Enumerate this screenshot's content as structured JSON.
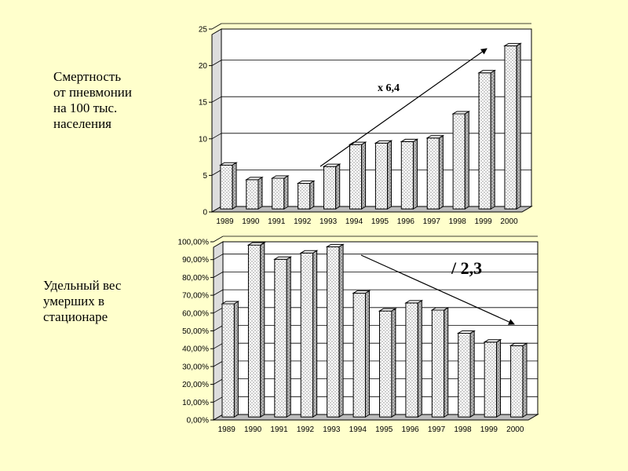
{
  "labels": {
    "chart1": "Смертность\nот пневмонии\nна 100 тыс.\nнаселения",
    "chart2": "Удельный вес\nумерших в\nстационаре"
  },
  "chart_data": [
    {
      "type": "bar",
      "categories": [
        "1989",
        "1990",
        "1991",
        "1992",
        "1993",
        "1994",
        "1995",
        "1996",
        "1997",
        "1998",
        "1999",
        "2000"
      ],
      "values": [
        6.0,
        4.0,
        4.2,
        3.5,
        5.8,
        8.8,
        9.0,
        9.2,
        9.7,
        13.0,
        18.6,
        22.3
      ],
      "ylim": [
        0,
        25
      ],
      "yticks": [
        "0",
        "5",
        "10",
        "15",
        "20",
        "25"
      ],
      "grid": true,
      "annotation": "x 6,4",
      "trend": "up"
    },
    {
      "type": "bar",
      "categories": [
        "1989",
        "1990",
        "1991",
        "1992",
        "1993",
        "1994",
        "1995",
        "1996",
        "1997",
        "1998",
        "1999",
        "2000"
      ],
      "values": [
        63.5,
        96.5,
        88.5,
        92.0,
        95.5,
        69.5,
        59.5,
        64.0,
        60.0,
        47.0,
        42.0,
        40.0
      ],
      "ylim": [
        0,
        100
      ],
      "yticks": [
        "0,00%",
        "10,00%",
        "20,00%",
        "30,00%",
        "40,00%",
        "50,00%",
        "60,00%",
        "70,00%",
        "80,00%",
        "90,00%",
        "100,00%"
      ],
      "grid": true,
      "annotation": "/ 2,3",
      "trend": "down"
    }
  ]
}
